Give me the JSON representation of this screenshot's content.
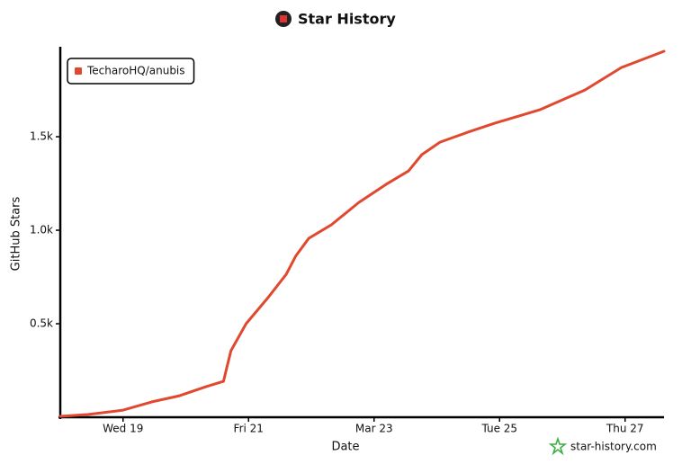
{
  "chart_data": {
    "type": "line",
    "title": "Star History",
    "x_label": "Date",
    "y_label": "GitHub Stars",
    "watermark": "star-history.com",
    "x": [
      18.0,
      18.45,
      19.0,
      19.46,
      19.9,
      20.32,
      20.6,
      20.65,
      20.72,
      20.96,
      21.32,
      21.6,
      21.75,
      21.96,
      22.32,
      22.76,
      23.19,
      23.55,
      23.76,
      24.05,
      24.49,
      24.92,
      25.64,
      26.36,
      26.94,
      27.62
    ],
    "series": [
      {
        "name": "TecharoHQ/anubis",
        "color": "#e0492f",
        "values": [
          5,
          15,
          38,
          82,
          115,
          163,
          192,
          260,
          356,
          500,
          644,
          764,
          861,
          957,
          1029,
          1149,
          1245,
          1317,
          1404,
          1471,
          1524,
          1572,
          1644,
          1750,
          1870,
          1957
        ]
      }
    ],
    "xlim": [
      18.0,
      27.62
    ],
    "xticks": [
      {
        "value": 19,
        "label": "Wed 19"
      },
      {
        "value": 21,
        "label": "Fri 21"
      },
      {
        "value": 23,
        "label": "Mar 23"
      },
      {
        "value": 25,
        "label": "Tue 25"
      },
      {
        "value": 27,
        "label": "Thu 27"
      }
    ],
    "ylim": [
      0,
      1957
    ],
    "yticks": [
      {
        "value": 500,
        "label": "0.5k"
      },
      {
        "value": 1000,
        "label": "1.0k"
      },
      {
        "value": 1500,
        "label": "1.5k"
      }
    ],
    "grid": false,
    "legend": "top-left"
  }
}
